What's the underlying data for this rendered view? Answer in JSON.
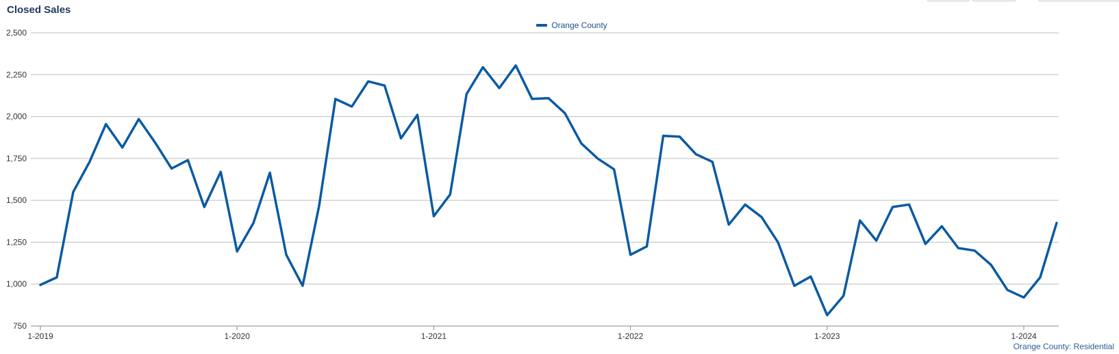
{
  "title": "Closed Sales",
  "footer_note": "Orange County: Residential",
  "colors": {
    "series": "#0a5aa3",
    "grid": "#bdbdbd",
    "title": "#1f3a5c"
  },
  "chart_data": {
    "type": "line",
    "title": "Closed Sales",
    "xlabel": "",
    "ylabel": "",
    "ylim": [
      750,
      2500
    ],
    "yticks": [
      750,
      1000,
      1250,
      1500,
      1750,
      2000,
      2250,
      2500
    ],
    "ytick_labels": [
      "750",
      "1,000",
      "1,250",
      "1,500",
      "1,750",
      "2,000",
      "2,250",
      "2,500"
    ],
    "xtick_labels": [
      "1-2019",
      "1-2020",
      "1-2021",
      "1-2022",
      "1-2023",
      "1-2024"
    ],
    "grid": true,
    "legend_position": "top-center",
    "x_start": "2019-01",
    "x": [
      "2019-01",
      "2019-02",
      "2019-03",
      "2019-04",
      "2019-05",
      "2019-06",
      "2019-07",
      "2019-08",
      "2019-09",
      "2019-10",
      "2019-11",
      "2019-12",
      "2020-01",
      "2020-02",
      "2020-03",
      "2020-04",
      "2020-05",
      "2020-06",
      "2020-07",
      "2020-08",
      "2020-09",
      "2020-10",
      "2020-11",
      "2020-12",
      "2021-01",
      "2021-02",
      "2021-03",
      "2021-04",
      "2021-05",
      "2021-06",
      "2021-07",
      "2021-08",
      "2021-09",
      "2021-10",
      "2021-11",
      "2021-12",
      "2022-01",
      "2022-02",
      "2022-03",
      "2022-04",
      "2022-05",
      "2022-06",
      "2022-07",
      "2022-08",
      "2022-09",
      "2022-10",
      "2022-11",
      "2022-12",
      "2023-01",
      "2023-02",
      "2023-03",
      "2023-04",
      "2023-05",
      "2023-06",
      "2023-07",
      "2023-08",
      "2023-09",
      "2023-10",
      "2023-11",
      "2023-12",
      "2024-01",
      "2024-02",
      "2024-03"
    ],
    "series": [
      {
        "name": "Orange County",
        "color": "#0a5aa3",
        "values": [
          995,
          1040,
          1550,
          1730,
          1955,
          1815,
          1985,
          1845,
          1690,
          1740,
          1460,
          1670,
          1195,
          1365,
          1665,
          1175,
          990,
          1465,
          2105,
          2060,
          2210,
          2185,
          1870,
          2010,
          1405,
          1535,
          2135,
          2295,
          2170,
          2305,
          2105,
          2110,
          2020,
          1840,
          1750,
          1685,
          1175,
          1225,
          1885,
          1880,
          1775,
          1730,
          1355,
          1475,
          1400,
          1250,
          990,
          1045,
          815,
          930,
          1380,
          1260,
          1460,
          1475,
          1240,
          1345,
          1215,
          1200,
          1115,
          965,
          920,
          1040,
          1365
        ]
      }
    ]
  }
}
